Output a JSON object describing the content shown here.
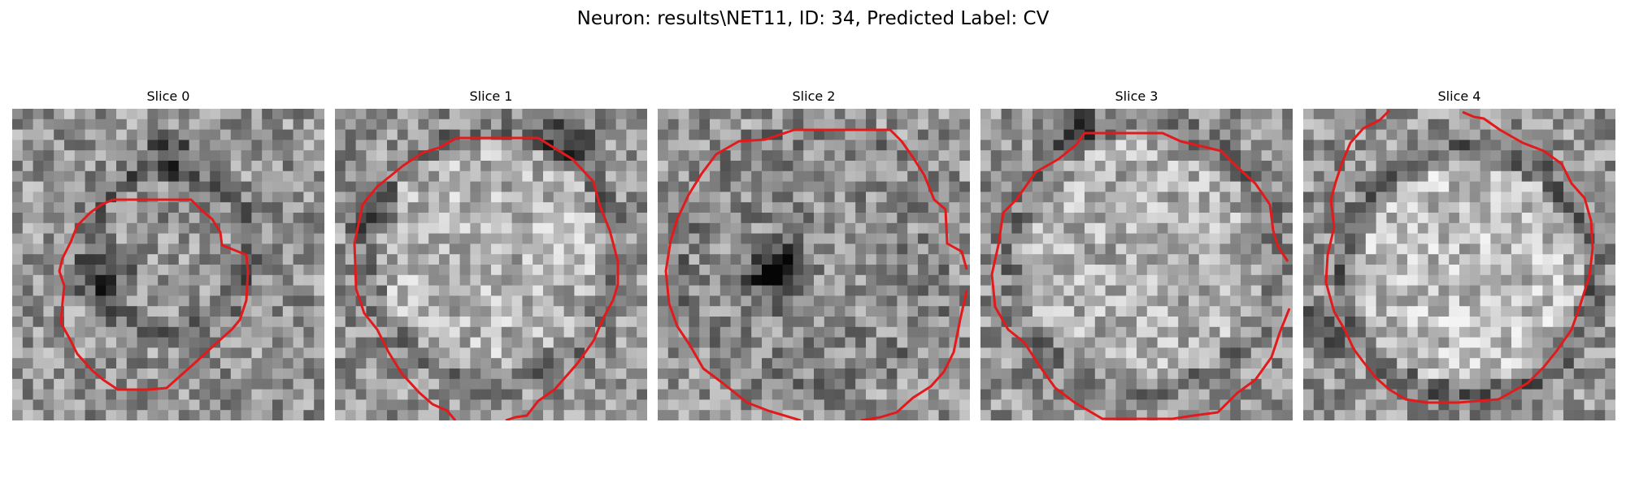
{
  "figure": {
    "title": "Neuron: results\\NET11, ID: 34, Predicted Label: CV"
  },
  "panels": [
    {
      "label": "Slice 0"
    },
    {
      "label": "Slice 1"
    },
    {
      "label": "Slice 2"
    },
    {
      "label": "Slice 3"
    },
    {
      "label": "Slice 4"
    }
  ],
  "colors": {
    "contour": "#e31a1c",
    "background": "#ffffff"
  },
  "image": {
    "grid": 30,
    "colormap": "gray"
  }
}
